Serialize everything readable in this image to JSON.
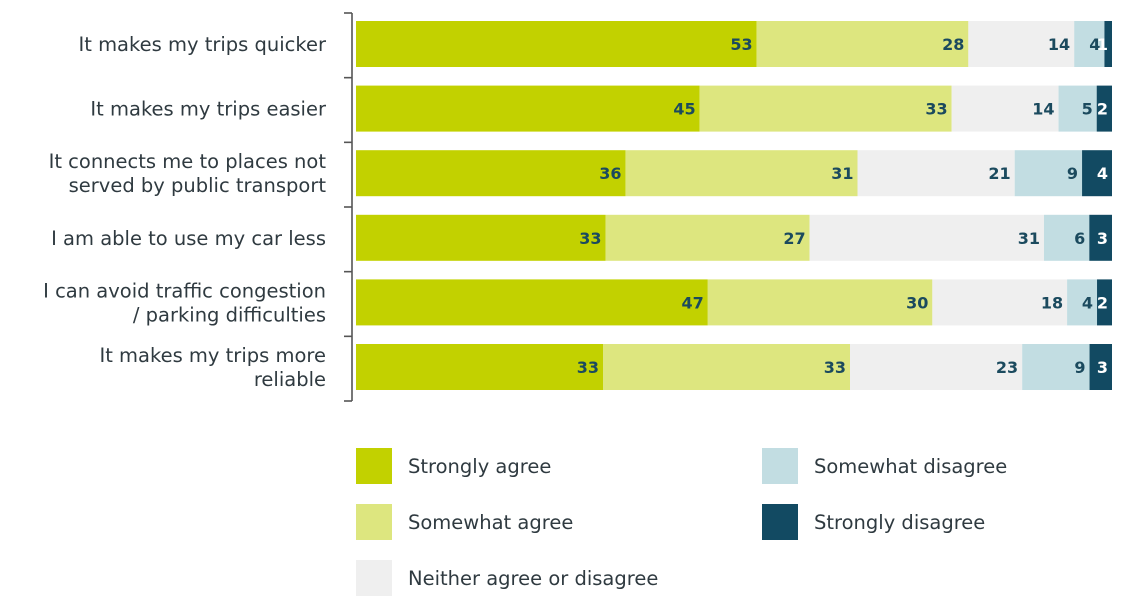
{
  "chart_data": {
    "type": "bar",
    "orientation": "horizontal",
    "stacked": true,
    "categories": [
      [
        "It makes my trips quicker"
      ],
      [
        "It makes my trips easier"
      ],
      [
        "It connects me to places not",
        "served by public transport"
      ],
      [
        "I am able to use my car less"
      ],
      [
        "I can avoid traffic congestion",
        "/ parking difficulties"
      ],
      [
        "It makes my trips more",
        "reliable"
      ]
    ],
    "series": [
      {
        "name": "Strongly agree",
        "color": "#c2d100",
        "label_color": "#1b4a5e",
        "values": [
          53,
          45,
          36,
          33,
          47,
          33
        ]
      },
      {
        "name": "Somewhat agree",
        "color": "#dde67f",
        "label_color": "#1b4a5e",
        "values": [
          28,
          33,
          31,
          27,
          30,
          33
        ]
      },
      {
        "name": "Neither agree or disagree",
        "color": "#efefef",
        "label_color": "#1b4a5e",
        "values": [
          14,
          14,
          21,
          31,
          18,
          23
        ]
      },
      {
        "name": "Somewhat disagree",
        "color": "#c2dde2",
        "label_color": "#1b4a5e",
        "values": [
          4,
          5,
          9,
          6,
          4,
          9
        ]
      },
      {
        "name": "Strongly disagree",
        "color": "#124a62",
        "label_color": "#ffffff",
        "values": [
          1,
          2,
          4,
          3,
          2,
          3
        ]
      }
    ],
    "legend": {
      "placement": "bottom",
      "columns": [
        [
          "Strongly agree",
          "Somewhat agree",
          "Neither agree or disagree"
        ],
        [
          "Somewhat disagree",
          "Strongly disagree"
        ]
      ]
    },
    "title": "",
    "xlabel": "",
    "ylabel": "",
    "grid": false
  }
}
